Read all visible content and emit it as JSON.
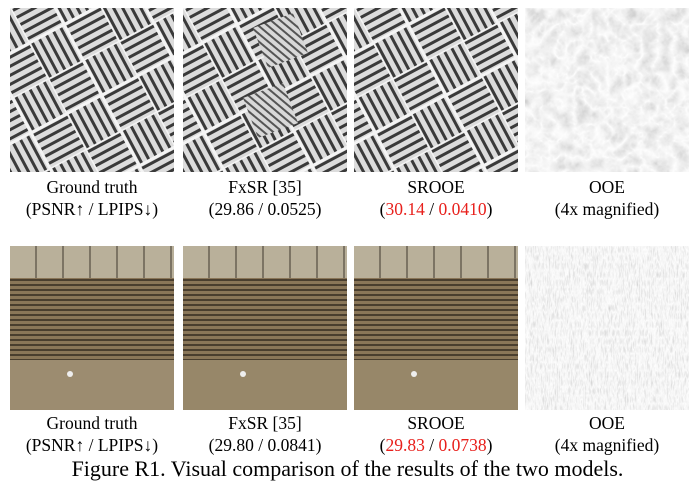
{
  "rows": [
    {
      "panels": [
        {
          "label": "Ground truth",
          "metrics": [
            {
              "text": "(PSNR↑ / LPIPS↓)"
            }
          ]
        },
        {
          "label": "FxSR [35]",
          "metrics": [
            {
              "text": "("
            },
            {
              "text": "29.86"
            },
            {
              "text": " / "
            },
            {
              "text": "0.0525"
            },
            {
              "text": ")"
            }
          ]
        },
        {
          "label": "SROOE",
          "metrics": [
            {
              "text": "("
            },
            {
              "text": "30.14",
              "color": "#e8201c"
            },
            {
              "text": " / "
            },
            {
              "text": "0.0410",
              "color": "#e8201c"
            },
            {
              "text": ")"
            }
          ]
        },
        {
          "label": "OOE",
          "metrics": [
            {
              "text": "(4x magnified)"
            }
          ]
        }
      ]
    },
    {
      "panels": [
        {
          "label": "Ground truth",
          "metrics": [
            {
              "text": "(PSNR↑ / LPIPS↓)"
            }
          ]
        },
        {
          "label": "FxSR [35]",
          "metrics": [
            {
              "text": "("
            },
            {
              "text": "29.80"
            },
            {
              "text": " / "
            },
            {
              "text": "0.0841"
            },
            {
              "text": ")"
            }
          ]
        },
        {
          "label": "SROOE",
          "metrics": [
            {
              "text": "("
            },
            {
              "text": "29.83",
              "color": "#e8201c"
            },
            {
              "text": " / "
            },
            {
              "text": "0.0738",
              "color": "#e8201c"
            },
            {
              "text": ")"
            }
          ]
        },
        {
          "label": "OOE",
          "metrics": [
            {
              "text": "(4x magnified)"
            }
          ]
        }
      ]
    }
  ],
  "caption": "Figure R1. Visual comparison of the results of the two models."
}
